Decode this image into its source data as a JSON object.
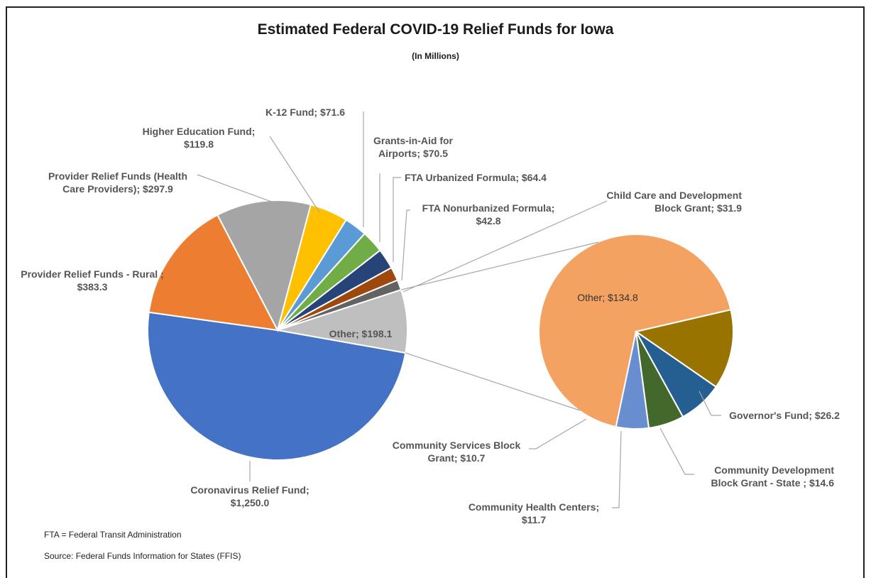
{
  "chart_data": {
    "type": "pie",
    "title": "Estimated Federal COVID-19 Relief Funds for Iowa",
    "subtitle": "(In Millions)",
    "primary": {
      "slices": [
        {
          "label": "Coronavirus Relief Fund;",
          "value_text": "$1,250.0",
          "value": 1250.0,
          "color": "#4472C4"
        },
        {
          "label": "Provider Relief Funds - Rural ;",
          "value_text": "$383.3",
          "value": 383.3,
          "color": "#ED7D31"
        },
        {
          "label": "Provider Relief Funds (Health Care Providers);",
          "value_text": "$297.9",
          "value": 297.9,
          "color": "#A5A5A5"
        },
        {
          "label": "Higher Education Fund;",
          "value_text": "$119.8",
          "value": 119.8,
          "color": "#FFC000"
        },
        {
          "label": "K-12 Fund;",
          "value_text": "$71.6",
          "value": 71.6,
          "color": "#5B9BD5"
        },
        {
          "label": "Grants-in-Aid for Airports;",
          "value_text": "$70.5",
          "value": 70.5,
          "color": "#70AD47"
        },
        {
          "label": "FTA Urbanized Formula;",
          "value_text": "$64.4",
          "value": 64.4,
          "color": "#264478"
        },
        {
          "label": "FTA Nonurbanized Formula;",
          "value_text": "$42.8",
          "value": 42.8,
          "color": "#9E480E"
        },
        {
          "label": "Child Care and Development Block Grant;",
          "value_text": "$31.9",
          "value": 31.9,
          "color": "#636363"
        },
        {
          "label": "Other;",
          "value_text": "$198.1",
          "value": 198.1,
          "color": "#BFBFBF"
        }
      ]
    },
    "secondary": {
      "slices": [
        {
          "label": "Other;",
          "value_text": "$134.8",
          "value": 134.8,
          "color": "#F4A261"
        },
        {
          "label": "Governor's Fund;",
          "value_text": "$26.2",
          "value": 26.2,
          "color": "#997300"
        },
        {
          "label": "Community Development Block Grant - State ;",
          "value_text": "$14.6",
          "value": 14.6,
          "color": "#255E91"
        },
        {
          "label": "Community Health Centers;",
          "value_text": "$11.7",
          "value": 11.7,
          "color": "#43682B"
        },
        {
          "label": "Community Services Block Grant;",
          "value_text": "$10.7",
          "value": 10.7,
          "color": "#698ED0"
        }
      ]
    }
  },
  "footer": {
    "note": "FTA = Federal Transit Administration",
    "source": "Source:  Federal Funds Information for States (FFIS)"
  }
}
